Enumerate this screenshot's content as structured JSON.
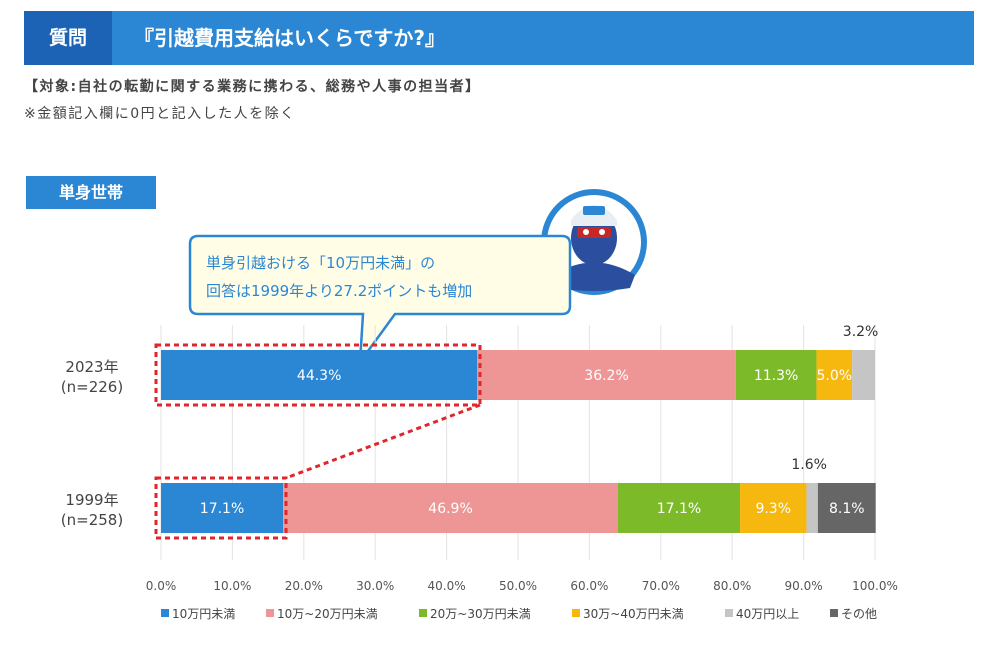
{
  "header": {
    "tag": "質問",
    "question": "『引越費用支給はいくらですか?』"
  },
  "target": "【対象:自社の転勤に関する業務に携わる、総務や人事の担当者】",
  "note": "※金額記入欄に0円と記入した人を除く",
  "section_label": "単身世帯",
  "callout": {
    "line1": "単身引越おける「10万円未満」の",
    "line2": "回答は1999年より27.2ポイントも増加"
  },
  "colors": {
    "header_blue": "#2b87d3",
    "tag_blue": "#1c62b5",
    "highlight_red": "#e0262b"
  },
  "chart_data": {
    "type": "bar",
    "orientation": "horizontal",
    "stacked": true,
    "categories": [
      {
        "year": "2023年",
        "n": "(n=226)"
      },
      {
        "year": "1999年",
        "n": "(n=258)"
      }
    ],
    "series": [
      {
        "name": "10万円未満",
        "color": "#2b87d3",
        "values": [
          44.3,
          17.1
        ],
        "labels": [
          "44.3%",
          "17.1%"
        ]
      },
      {
        "name": "10万~20万円未満",
        "color": "#ee9696",
        "values": [
          36.2,
          46.9
        ],
        "labels": [
          "36.2%",
          "46.9%"
        ]
      },
      {
        "name": "20万~30万円未満",
        "color": "#7dba2a",
        "values": [
          11.3,
          17.1
        ],
        "labels": [
          "11.3%",
          "17.1%"
        ]
      },
      {
        "name": "30万~40万円未満",
        "color": "#f6b80e",
        "values": [
          5.0,
          9.3
        ],
        "labels": [
          "5.0%",
          "9.3%"
        ]
      },
      {
        "name": "40万円以上",
        "color": "#c5c5c5",
        "values": [
          3.2,
          1.6
        ],
        "labels": [
          "3.2%",
          "1.6%"
        ]
      },
      {
        "name": "その他",
        "color": "#666666",
        "values": [
          0,
          8.1
        ],
        "labels": [
          "",
          "8.1%"
        ]
      }
    ],
    "xlim": [
      0,
      100
    ],
    "xticks": [
      "0.0%",
      "10.0%",
      "20.0%",
      "30.0%",
      "40.0%",
      "50.0%",
      "60.0%",
      "70.0%",
      "80.0%",
      "90.0%",
      "100.0%"
    ],
    "grid": true,
    "legend": "bottom"
  }
}
